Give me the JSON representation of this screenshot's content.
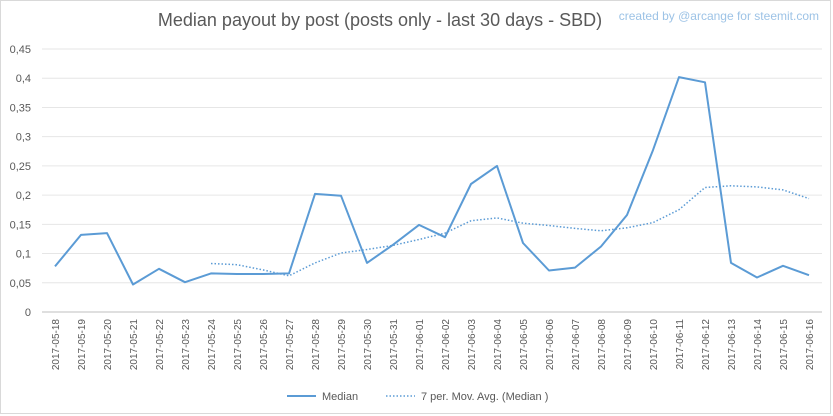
{
  "chart_data": {
    "type": "line",
    "title": "Median payout by post (posts only - last 30 days - SBD)",
    "credit": "created by @arcange for steemit.com",
    "xlabel": "",
    "ylabel": "",
    "ylim": [
      0,
      0.45
    ],
    "y_ticks": [
      "0",
      "0,05",
      "0,1",
      "0,15",
      "0,2",
      "0,25",
      "0,3",
      "0,35",
      "0,4",
      "0,45"
    ],
    "y_tick_values": [
      0,
      0.05,
      0.1,
      0.15,
      0.2,
      0.25,
      0.3,
      0.35,
      0.4,
      0.45
    ],
    "grid": true,
    "legend_position": "bottom",
    "categories": [
      "2017-05-18",
      "2017-05-19",
      "2017-05-20",
      "2017-05-21",
      "2017-05-22",
      "2017-05-23",
      "2017-05-24",
      "2017-05-25",
      "2017-05-26",
      "2017-05-27",
      "2017-05-28",
      "2017-05-29",
      "2017-05-30",
      "2017-05-31",
      "2017-06-01",
      "2017-06-02",
      "2017-06-03",
      "2017-06-04",
      "2017-06-05",
      "2017-06-06",
      "2017-06-07",
      "2017-06-08",
      "2017-06-09",
      "2017-06-10",
      "2017-06-11",
      "2017-06-12",
      "2017-06-13",
      "2017-06-14",
      "2017-06-15",
      "2017-06-16"
    ],
    "series": [
      {
        "name": "Median",
        "style": "solid",
        "color": "#5b9bd5",
        "values": [
          0.078,
          0.132,
          0.135,
          0.047,
          0.074,
          0.051,
          0.066,
          0.065,
          0.065,
          0.066,
          0.202,
          0.199,
          0.084,
          0.115,
          0.149,
          0.128,
          0.219,
          0.25,
          0.118,
          0.071,
          0.076,
          0.112,
          0.166,
          0.277,
          0.402,
          0.393,
          0.084,
          0.059,
          0.079,
          0.063
        ]
      },
      {
        "name": "7 per. Mov. Avg. (Median )",
        "style": "dotted",
        "color": "#5b9bd5",
        "values": [
          null,
          null,
          null,
          null,
          null,
          null,
          0.083,
          0.081,
          0.072,
          0.062,
          0.084,
          0.101,
          0.107,
          0.114,
          0.124,
          0.135,
          0.156,
          0.161,
          0.152,
          0.148,
          0.143,
          0.139,
          0.144,
          0.153,
          0.175,
          0.213,
          0.216,
          0.214,
          0.209,
          0.194
        ]
      }
    ]
  }
}
